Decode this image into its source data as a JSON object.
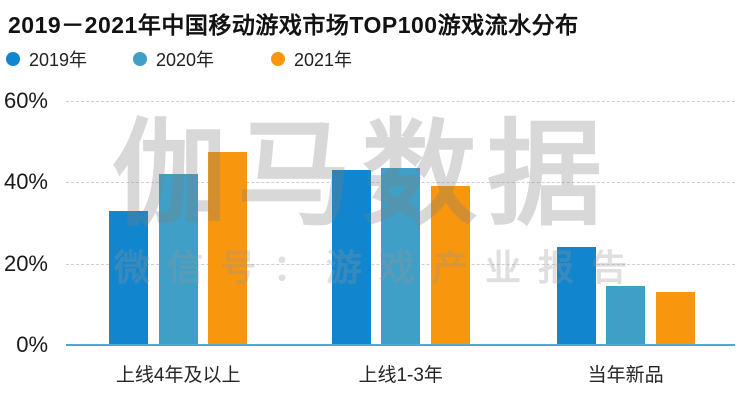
{
  "title": "2019－2021年中国移动游戏市场TOP100游戏流水分布",
  "watermark": {
    "line1": "伽马数据",
    "line2": "微信号：游戏产业报告"
  },
  "colors": {
    "year_2019": "#1186cf",
    "year_2020": "#3f9fc6",
    "year_2021": "#f8970d",
    "axis_line": "#4aa9cf",
    "gridline": "#cfcfcf",
    "title_text": "#121212",
    "background": "#ffffff"
  },
  "chart_data": {
    "type": "bar",
    "title": "2019－2021年中国移动游戏市场TOP100游戏流水分布",
    "categories": [
      "上线4年及以上",
      "上线1-3年",
      "当年新品"
    ],
    "series": [
      {
        "name": "2019年",
        "color": "#1186cf",
        "values": [
          33,
          43,
          24
        ]
      },
      {
        "name": "2020年",
        "color": "#3f9fc6",
        "values": [
          42,
          43.5,
          14.5
        ]
      },
      {
        "name": "2021年",
        "color": "#f8970d",
        "values": [
          47.5,
          39,
          13
        ]
      }
    ],
    "xlabel": "",
    "ylabel": "",
    "ylim": [
      0,
      60
    ],
    "yticks": [
      {
        "label": "0%",
        "value": 0
      },
      {
        "label": "20%",
        "value": 20
      },
      {
        "label": "40%",
        "value": 40
      },
      {
        "label": "60%",
        "value": 60
      }
    ],
    "grid": "horizontal dashed at 20/40/60, none at 0",
    "legend_position": "top-left"
  }
}
